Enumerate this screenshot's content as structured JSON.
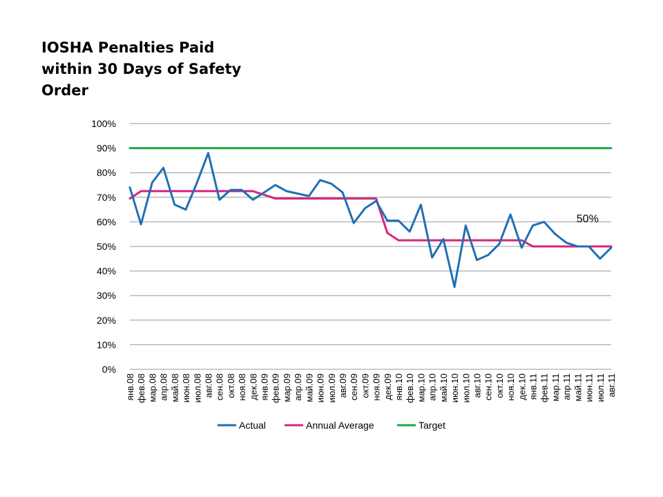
{
  "chart_data": {
    "type": "line",
    "title_lines": [
      "IOSHA Penalties Paid",
      "within 30 Days of Safety",
      "Order"
    ],
    "xlabel": "",
    "ylabel": "",
    "ylim": [
      0,
      1
    ],
    "yticks": [
      "0%",
      "10%",
      "20%",
      "30%",
      "40%",
      "50%",
      "60%",
      "70%",
      "80%",
      "90%",
      "100%"
    ],
    "grid": true,
    "legend_position": "bottom",
    "categories": [
      "янв.08",
      "фев.08",
      "мар.08",
      "апр.08",
      "май.08",
      "июн.08",
      "июл.08",
      "авг.08",
      "сен.08",
      "окт.08",
      "ноя.08",
      "дек.08",
      "янв.09",
      "фев.09",
      "мар.09",
      "апр.09",
      "май.09",
      "июн.09",
      "июл.09",
      "авг.09",
      "сен.09",
      "окт.09",
      "ноя.09",
      "дек.09",
      "янв.10",
      "фев.10",
      "мар.10",
      "апр.10",
      "май.10",
      "июн.10",
      "июл.10",
      "авг.10",
      "сен.10",
      "окт.10",
      "ноя.10",
      "дек.10",
      "янв.11",
      "фев.11",
      "мар.11",
      "апр.11",
      "май.11",
      "июн.11",
      "июл.11",
      "авг.11"
    ],
    "series": [
      {
        "name": "Actual",
        "color": "#1F6FB5",
        "values": [
          0.74,
          0.59,
          0.76,
          0.82,
          0.67,
          0.65,
          0.76,
          0.88,
          0.69,
          0.73,
          0.73,
          0.69,
          0.72,
          0.75,
          0.725,
          0.715,
          0.705,
          0.77,
          0.755,
          0.72,
          0.595,
          0.655,
          0.685,
          0.605,
          0.605,
          0.56,
          0.67,
          0.455,
          0.53,
          0.335,
          0.585,
          0.445,
          0.465,
          0.51,
          0.63,
          0.495,
          0.585,
          0.6,
          0.55,
          0.515,
          0.5,
          0.5,
          0.45,
          0.495
        ]
      },
      {
        "name": "Annual Average",
        "color": "#D4257A",
        "values": [
          0.695,
          0.725,
          0.725,
          0.725,
          0.725,
          0.725,
          0.725,
          0.725,
          0.725,
          0.725,
          0.725,
          0.725,
          0.71,
          0.695,
          0.695,
          0.695,
          0.695,
          0.695,
          0.695,
          0.695,
          0.695,
          0.695,
          0.695,
          0.555,
          0.525,
          0.525,
          0.525,
          0.525,
          0.525,
          0.525,
          0.525,
          0.525,
          0.525,
          0.525,
          0.525,
          0.525,
          0.5,
          0.5,
          0.5,
          0.5,
          0.5,
          0.5,
          0.5,
          0.5
        ]
      },
      {
        "name": "Target",
        "color": "#1AAA44",
        "values": [
          0.9,
          0.9,
          0.9,
          0.9,
          0.9,
          0.9,
          0.9,
          0.9,
          0.9,
          0.9,
          0.9,
          0.9,
          0.9,
          0.9,
          0.9,
          0.9,
          0.9,
          0.9,
          0.9,
          0.9,
          0.9,
          0.9,
          0.9,
          0.9,
          0.9,
          0.9,
          0.9,
          0.9,
          0.9,
          0.9,
          0.9,
          0.9,
          0.9,
          0.9,
          0.9,
          0.9,
          0.9,
          0.9,
          0.9,
          0.9,
          0.9,
          0.9,
          0.9,
          0.9
        ]
      }
    ],
    "annotation": {
      "text": "50%",
      "category": "июл.11",
      "value": 0.5
    }
  }
}
